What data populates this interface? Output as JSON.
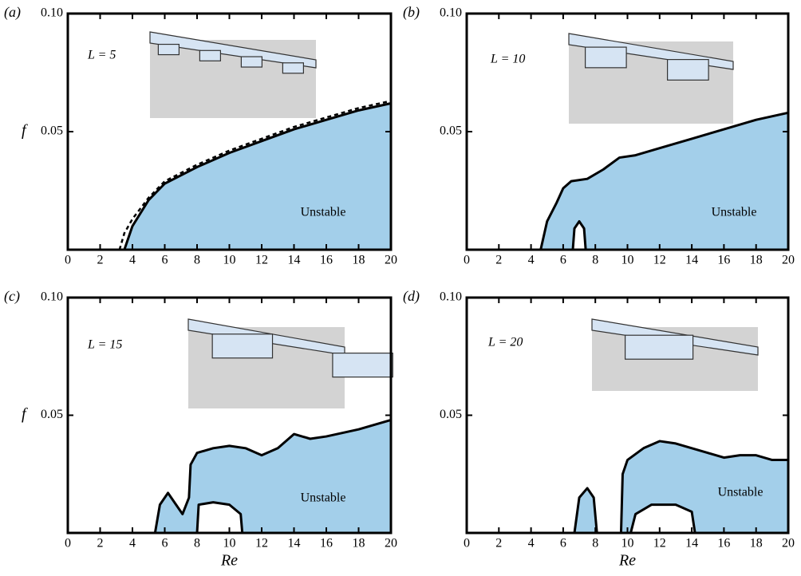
{
  "chart_data": [
    {
      "type": "stability",
      "panel_label": "(a)",
      "annotations": [
        "L = 5",
        "Unstable"
      ],
      "ylabel": "f",
      "xlim": [
        0,
        20
      ],
      "ylim": [
        0,
        0.1
      ],
      "xticks": [
        0,
        2,
        4,
        6,
        8,
        10,
        12,
        14,
        16,
        18,
        20
      ],
      "yticks": [
        0.05,
        {
          "value": 0.1,
          "label": "0.10"
        }
      ],
      "curves": [
        {
          "fill": "#a3cfea",
          "x": [
            3.5,
            4,
            5,
            6,
            8,
            10,
            12,
            14,
            16,
            18,
            20
          ],
          "y": [
            0,
            0.01,
            0.021,
            0.028,
            0.035,
            0.041,
            0.046,
            0.051,
            0.055,
            0.059,
            0.062
          ]
        },
        {
          "fill": "none",
          "dash": true,
          "x": [
            3.2,
            3.5,
            4,
            5,
            6,
            8,
            10,
            12,
            14,
            16,
            18,
            20
          ],
          "y": [
            0,
            0.007,
            0.013,
            0.022,
            0.029,
            0.036,
            0.042,
            0.047,
            0.052,
            0.056,
            0.06,
            0.063
          ]
        }
      ]
    },
    {
      "type": "stability",
      "panel_label": "(b)",
      "annotations": [
        "L = 10",
        "Unstable"
      ],
      "xlim": [
        0,
        20
      ],
      "ylim": [
        0,
        0.1
      ],
      "xticks": [
        0,
        2,
        4,
        6,
        8,
        10,
        12,
        14,
        16,
        18,
        20
      ],
      "yticks": [
        0.05,
        {
          "value": 0.1,
          "label": "0.10"
        }
      ],
      "curves": [
        {
          "fill": "#a3cfea",
          "x": [
            4.6,
            5,
            5.6,
            6,
            6.5,
            7.5,
            8.5,
            9.5,
            10.5,
            12,
            14,
            16,
            18,
            20
          ],
          "y": [
            0,
            0.012,
            0.02,
            0.026,
            0.029,
            0.03,
            0.034,
            0.039,
            0.04,
            0.043,
            0.047,
            0.051,
            0.055,
            0.058
          ]
        },
        {
          "fill": "#ffffff",
          "x": [
            6.6,
            6.7,
            7,
            7.3,
            7.4
          ],
          "y": [
            0,
            0.009,
            0.012,
            0.009,
            0
          ]
        }
      ]
    },
    {
      "type": "stability",
      "panel_label": "(c)",
      "annotations": [
        "L = 15",
        "Unstable"
      ],
      "ylabel": "f",
      "xlabel": "Re",
      "xlim": [
        0,
        20
      ],
      "ylim": [
        0,
        0.1
      ],
      "xticks": [
        0,
        2,
        4,
        6,
        8,
        10,
        12,
        14,
        16,
        18,
        20
      ],
      "yticks": [
        0.05,
        {
          "value": 0.1,
          "label": "0.10"
        }
      ],
      "curves": [
        {
          "fill": "#a3cfea",
          "x": [
            5.4,
            5.7,
            6.2,
            6.7,
            7.1,
            7.5,
            7.6,
            8,
            9,
            10,
            11,
            12,
            13,
            14,
            15,
            16,
            18,
            20
          ],
          "y": [
            0,
            0.012,
            0.017,
            0.012,
            0.008,
            0.015,
            0.029,
            0.034,
            0.036,
            0.037,
            0.036,
            0.033,
            0.036,
            0.042,
            0.04,
            0.041,
            0.044,
            0.048
          ]
        },
        {
          "fill": "#ffffff",
          "x": [
            8,
            8.1,
            9,
            10,
            10.7,
            10.8
          ],
          "y": [
            0,
            0.012,
            0.013,
            0.012,
            0.008,
            0
          ]
        }
      ]
    },
    {
      "type": "stability",
      "panel_label": "(d)",
      "annotations": [
        "L = 20",
        "Unstable"
      ],
      "xlabel": "Re",
      "xlim": [
        0,
        20
      ],
      "ylim": [
        0,
        0.1
      ],
      "xticks": [
        0,
        2,
        4,
        6,
        8,
        10,
        12,
        14,
        16,
        18,
        20
      ],
      "yticks": [
        0.05,
        {
          "value": 0.1,
          "label": "0.10"
        }
      ],
      "curves": [
        {
          "fill": "#a3cfea",
          "x": [
            6.7,
            7,
            7.5,
            7.9,
            8.1
          ],
          "y": [
            0,
            0.015,
            0.019,
            0.015,
            0
          ]
        },
        {
          "fill": "#a3cfea",
          "x": [
            9.6,
            9.7,
            10,
            11,
            12,
            13,
            14,
            15,
            16,
            17,
            18,
            19,
            20
          ],
          "y": [
            0,
            0.025,
            0.031,
            0.036,
            0.039,
            0.038,
            0.036,
            0.034,
            0.032,
            0.033,
            0.033,
            0.031,
            0.031
          ]
        },
        {
          "fill": "#ffffff",
          "x": [
            10.2,
            10.5,
            11.5,
            13,
            14,
            14.2
          ],
          "y": [
            0,
            0.008,
            0.012,
            0.012,
            0.009,
            0
          ]
        }
      ]
    }
  ]
}
